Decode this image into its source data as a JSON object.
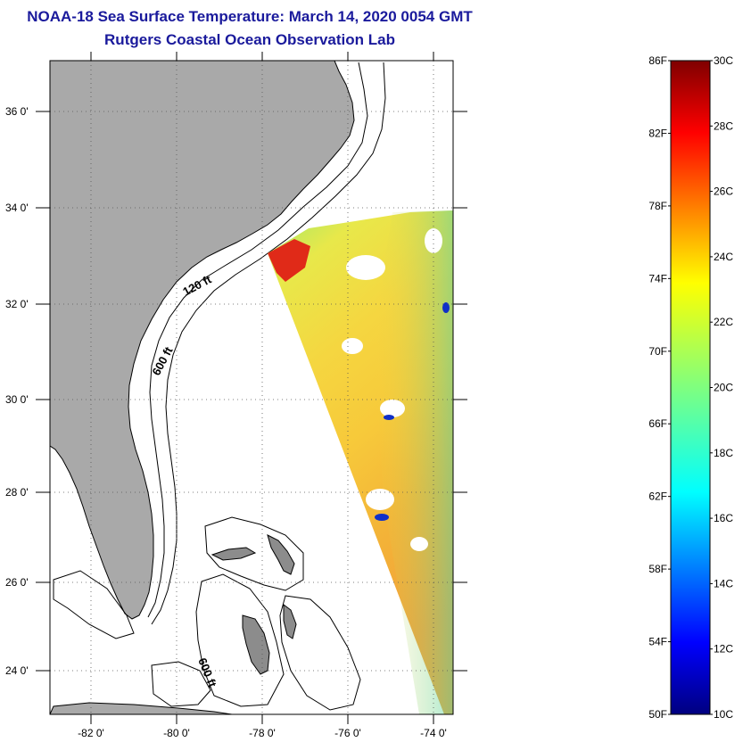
{
  "header": {
    "title": "NOAA-18 Sea Surface Temperature:  March 14, 2020 0054 GMT",
    "subtitle": "Rutgers Coastal Ocean Observation Lab"
  },
  "map": {
    "lat_labels": [
      "36 0'",
      "34 0'",
      "32 0'",
      "30 0'",
      "28 0'",
      "26 0'",
      "24 0'"
    ],
    "lon_labels": [
      "-82 0'",
      "-80 0'",
      "-78 0'",
      "-76 0'",
      "-74 0'"
    ],
    "contour_labels": [
      "120 ft",
      "600 ft",
      "600 ft"
    ],
    "land_color": "#a9a9a9",
    "grid": "dotted"
  },
  "colorbar": {
    "fahrenheit_labels": [
      "86F",
      "82F",
      "78F",
      "74F",
      "70F",
      "66F",
      "62F",
      "58F",
      "54F",
      "50F"
    ],
    "celsius_labels": [
      "30C",
      "28C",
      "26C",
      "24C",
      "22C",
      "20C",
      "18C",
      "16C",
      "14C",
      "12C",
      "10C"
    ],
    "colormap": "jet",
    "range_c": [
      10,
      30
    ],
    "range_f": [
      50,
      86
    ]
  }
}
